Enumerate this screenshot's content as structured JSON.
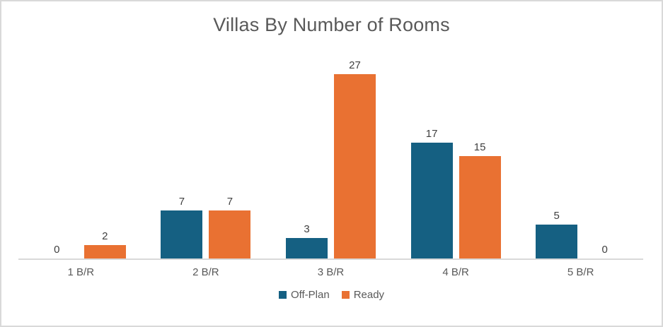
{
  "chart_data": {
    "type": "bar",
    "title": "Villas By Number of Rooms",
    "categories": [
      "1 B/R",
      "2 B/R",
      "3 B/R",
      "4 B/R",
      "5 B/R"
    ],
    "series": [
      {
        "name": "Off-Plan",
        "color": "#156082",
        "values": [
          0,
          7,
          3,
          17,
          5
        ]
      },
      {
        "name": "Ready",
        "color": "#E97132",
        "values": [
          2,
          7,
          27,
          15,
          0
        ]
      }
    ],
    "xlabel": "",
    "ylabel": "",
    "ylim": [
      0,
      30
    ],
    "grid": false,
    "data_labels": true,
    "legend_position": "bottom"
  },
  "colors": {
    "background": "#FFFFFF",
    "frame_border": "#D9D9D9",
    "axis_line": "#D9D9D9",
    "title_text": "#595959",
    "value_label_text": "#404040",
    "category_text": "#595959",
    "legend_text": "#595959"
  }
}
